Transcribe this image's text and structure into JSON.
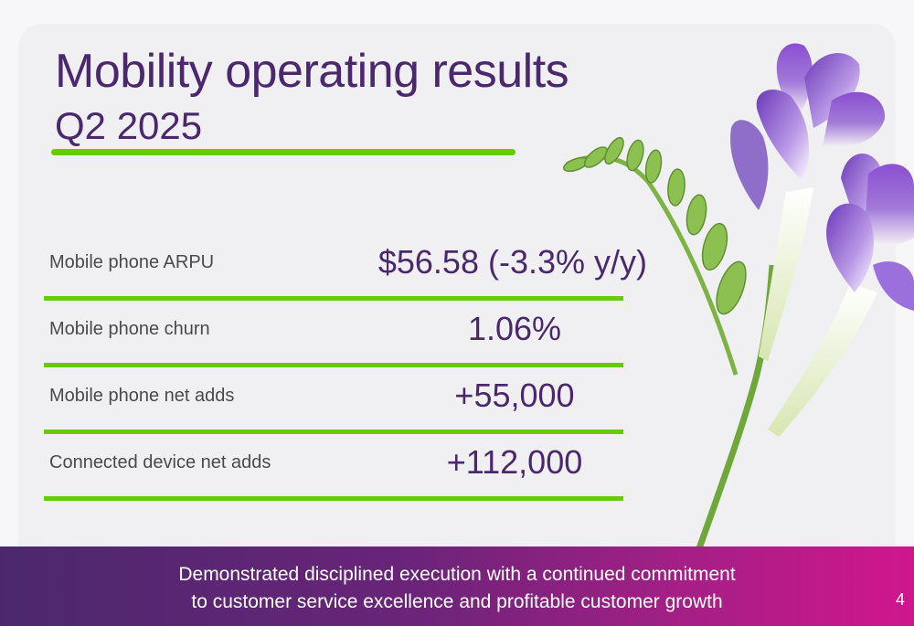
{
  "header": {
    "title": "Mobility operating results",
    "subtitle": "Q2 2025"
  },
  "metrics": [
    {
      "label": "Mobile phone ARPU",
      "value": "$56.58 (-3.3% y/y)"
    },
    {
      "label": "Mobile phone churn",
      "value": "1.06%"
    },
    {
      "label": "Mobile phone net adds",
      "value": "+55,000"
    },
    {
      "label": "Connected device net adds",
      "value": "+112,000"
    }
  ],
  "footer": {
    "line1": "Demonstrated disciplined execution with a continued commitment",
    "line2": "to customer service excellence and profitable customer growth",
    "page_number": "4"
  },
  "colors": {
    "brand_purple": "#4b286d",
    "accent_green": "#66cc00",
    "footer_magenta": "#d0168c"
  },
  "image": {
    "subject": "freesia-flower"
  }
}
